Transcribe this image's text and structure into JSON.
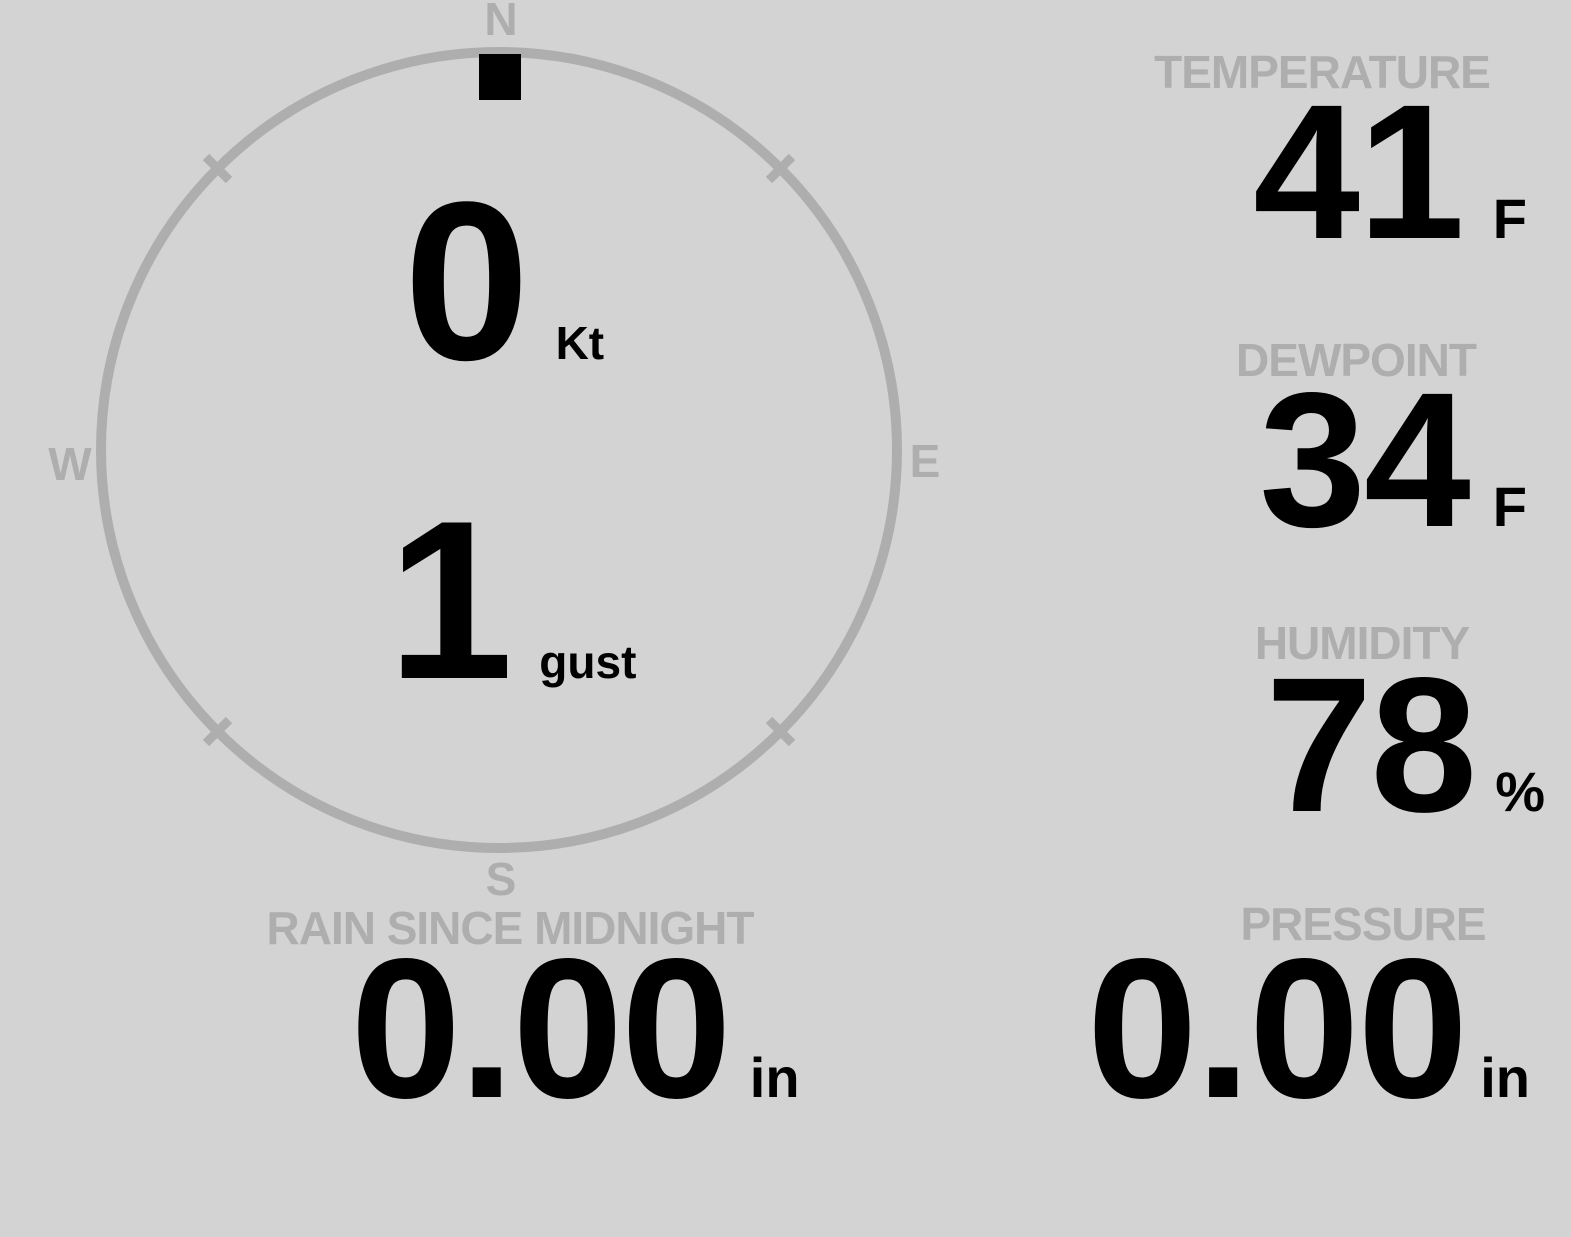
{
  "theme": {
    "background": "#d3d3d3",
    "muted": "#aeaeae",
    "text": "#000000"
  },
  "wind_gauge": {
    "compass_labels": {
      "n": "N",
      "e": "E",
      "s": "S",
      "w": "W"
    },
    "direction_deg": 0,
    "speed": {
      "value": "0",
      "unit": "Kt"
    },
    "gust": {
      "value": "1",
      "unit": "gust"
    }
  },
  "metrics": [
    {
      "id": "temperature",
      "label": "TEMPERATURE",
      "value": "41",
      "unit": "F"
    },
    {
      "id": "dewpoint",
      "label": "DEWPOINT",
      "value": "34",
      "unit": "F"
    },
    {
      "id": "humidity",
      "label": "HUMIDITY",
      "value": "78",
      "unit": "%"
    },
    {
      "id": "pressure",
      "label": "PRESSURE",
      "value": "0.00",
      "unit": "in"
    }
  ],
  "rain": {
    "label": "RAIN SINCE MIDNIGHT",
    "value": "0.00",
    "unit": "in"
  }
}
